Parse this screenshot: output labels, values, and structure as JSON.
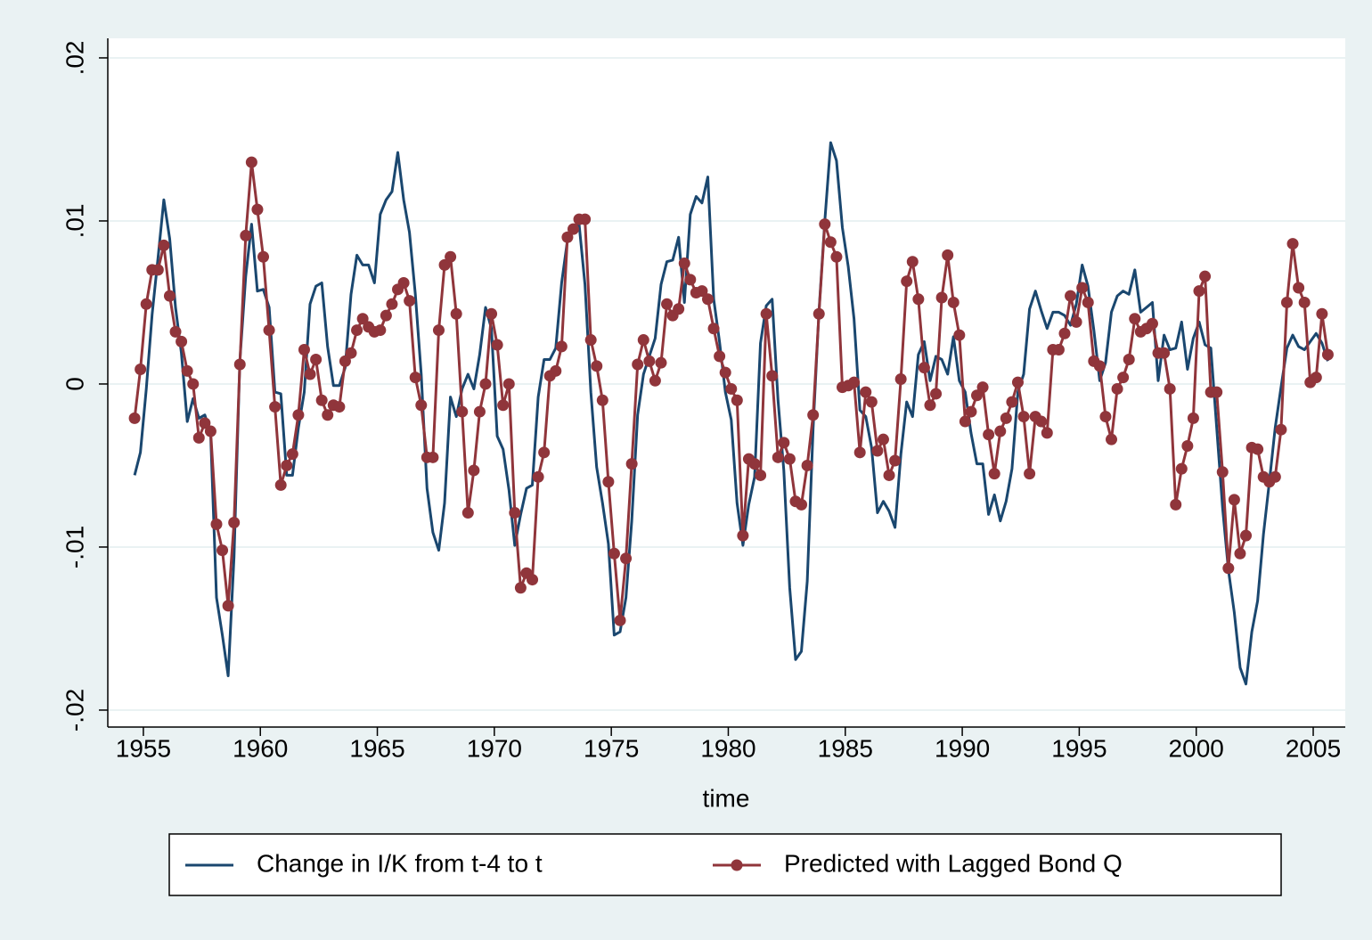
{
  "chart_data": {
    "type": "line",
    "x_label": "time",
    "x": [
      1954.625,
      1954.875,
      1955.125,
      1955.375,
      1955.625,
      1955.875,
      1956.125,
      1956.375,
      1956.625,
      1956.875,
      1957.125,
      1957.375,
      1957.625,
      1957.875,
      1958.125,
      1958.375,
      1958.625,
      1958.875,
      1959.125,
      1959.375,
      1959.625,
      1959.875,
      1960.125,
      1960.375,
      1960.625,
      1960.875,
      1961.125,
      1961.375,
      1961.625,
      1961.875,
      1962.125,
      1962.375,
      1962.625,
      1962.875,
      1963.125,
      1963.375,
      1963.625,
      1963.875,
      1964.125,
      1964.375,
      1964.625,
      1964.875,
      1965.125,
      1965.375,
      1965.625,
      1965.875,
      1966.125,
      1966.375,
      1966.625,
      1966.875,
      1967.125,
      1967.375,
      1967.625,
      1967.875,
      1968.125,
      1968.375,
      1968.625,
      1968.875,
      1969.125,
      1969.375,
      1969.625,
      1969.875,
      1970.125,
      1970.375,
      1970.625,
      1970.875,
      1971.125,
      1971.375,
      1971.625,
      1971.875,
      1972.125,
      1972.375,
      1972.625,
      1972.875,
      1973.125,
      1973.375,
      1973.625,
      1973.875,
      1974.125,
      1974.375,
      1974.625,
      1974.875,
      1975.125,
      1975.375,
      1975.625,
      1975.875,
      1976.125,
      1976.375,
      1976.625,
      1976.875,
      1977.125,
      1977.375,
      1977.625,
      1977.875,
      1978.125,
      1978.375,
      1978.625,
      1978.875,
      1979.125,
      1979.375,
      1979.625,
      1979.875,
      1980.125,
      1980.375,
      1980.625,
      1980.875,
      1981.125,
      1981.375,
      1981.625,
      1981.875,
      1982.125,
      1982.375,
      1982.625,
      1982.875,
      1983.125,
      1983.375,
      1983.625,
      1983.875,
      1984.125,
      1984.375,
      1984.625,
      1984.875,
      1985.125,
      1985.375,
      1985.625,
      1985.875,
      1986.125,
      1986.375,
      1986.625,
      1986.875,
      1987.125,
      1987.375,
      1987.625,
      1987.875,
      1988.125,
      1988.375,
      1988.625,
      1988.875,
      1989.125,
      1989.375,
      1989.625,
      1989.875,
      1990.125,
      1990.375,
      1990.625,
      1990.875,
      1991.125,
      1991.375,
      1991.625,
      1991.875,
      1992.125,
      1992.375,
      1992.625,
      1992.875,
      1993.125,
      1993.375,
      1993.625,
      1993.875,
      1994.125,
      1994.375,
      1994.625,
      1994.875,
      1995.125,
      1995.375,
      1995.625,
      1995.875,
      1996.125,
      1996.375,
      1996.625,
      1996.875,
      1997.125,
      1997.375,
      1997.625,
      1997.875,
      1998.125,
      1998.375,
      1998.625,
      1998.875,
      1999.125,
      1999.375,
      1999.625,
      1999.875,
      2000.125,
      2000.375,
      2000.625,
      2000.875,
      2001.125,
      2001.375,
      2001.625,
      2001.875,
      2002.125,
      2002.375,
      2002.625,
      2002.875,
      2003.125,
      2003.375,
      2003.625,
      2003.875,
      2004.125,
      2004.375,
      2004.625,
      2004.875,
      2005.125,
      2005.375,
      2005.625
    ],
    "series": [
      {
        "name": "Change in I/K from t-4 to t",
        "color": "#1a476f",
        "marker": false,
        "values": [
          -0.0056,
          -0.0042,
          -0.0003,
          0.0043,
          0.0077,
          0.0113,
          0.0089,
          0.0047,
          0.0019,
          -0.0023,
          -0.0009,
          -0.0021,
          -0.0019,
          -0.003,
          -0.0131,
          -0.0154,
          -0.0179,
          -0.0106,
          0.0014,
          0.0066,
          0.0098,
          0.0057,
          0.0058,
          0.0047,
          -0.0005,
          -0.0006,
          -0.0056,
          -0.0056,
          -0.0027,
          -0.0005,
          0.0049,
          0.006,
          0.0062,
          0.0023,
          -0.0001,
          -0.0001,
          0.001,
          0.0055,
          0.0079,
          0.0073,
          0.0073,
          0.0062,
          0.0104,
          0.0113,
          0.0118,
          0.0142,
          0.0113,
          0.0093,
          0.0055,
          0.0006,
          -0.0064,
          -0.0091,
          -0.0102,
          -0.0073,
          -0.0008,
          -0.002,
          -0.0003,
          0.0006,
          -0.0003,
          0.0018,
          0.0047,
          0.0034,
          -0.0032,
          -0.004,
          -0.0065,
          -0.0099,
          -0.008,
          -0.0064,
          -0.0062,
          -0.0008,
          0.0015,
          0.0015,
          0.0022,
          0.0062,
          0.0088,
          0.0096,
          0.0098,
          0.0061,
          -0.0005,
          -0.0051,
          -0.0073,
          -0.0098,
          -0.0154,
          -0.0152,
          -0.0131,
          -0.0084,
          -0.0019,
          0.0006,
          0.0017,
          0.0028,
          0.0061,
          0.0075,
          0.0076,
          0.009,
          0.005,
          0.0104,
          0.0115,
          0.0111,
          0.0127,
          0.0052,
          0.0026,
          -0.0005,
          -0.0022,
          -0.0073,
          -0.0099,
          -0.0074,
          -0.0057,
          0.0025,
          0.0048,
          0.0052,
          -0.001,
          -0.0053,
          -0.0125,
          -0.0169,
          -0.0164,
          -0.0121,
          -0.0027,
          0.0044,
          0.01,
          0.0148,
          0.0137,
          0.0096,
          0.0072,
          0.004,
          -0.0016,
          -0.002,
          -0.0039,
          -0.0079,
          -0.0072,
          -0.0078,
          -0.0088,
          -0.0043,
          -0.0011,
          -0.002,
          0.0018,
          0.0026,
          0.0002,
          0.0017,
          0.0015,
          0.0006,
          0.0029,
          0.0002,
          -0.0005,
          -0.003,
          -0.0049,
          -0.0049,
          -0.008,
          -0.0068,
          -0.0084,
          -0.0072,
          -0.0052,
          -0.0005,
          0.0006,
          0.0046,
          0.0057,
          0.0045,
          0.0034,
          0.0044,
          0.0044,
          0.0042,
          0.0036,
          0.0049,
          0.0073,
          0.006,
          0.0033,
          0.0002,
          0.0013,
          0.0044,
          0.0054,
          0.0057,
          0.0055,
          0.007,
          0.0044,
          0.0047,
          0.005,
          0.0002,
          0.003,
          0.0021,
          0.0022,
          0.0038,
          0.0009,
          0.0028,
          0.0038,
          0.0024,
          0.0022,
          -0.0027,
          -0.0076,
          -0.0114,
          -0.014,
          -0.0174,
          -0.0184,
          -0.0152,
          -0.0133,
          -0.0092,
          -0.006,
          -0.0027,
          -0.0002,
          0.0022,
          0.003,
          0.0023,
          0.0021,
          0.0026,
          0.0031,
          0.0025,
          0.0014
        ]
      },
      {
        "name": "Predicted with Lagged Bond Q",
        "color": "#90353b",
        "marker": true,
        "values": [
          -0.0021,
          0.0009,
          0.0049,
          0.007,
          0.007,
          0.0085,
          0.0054,
          0.0032,
          0.0026,
          0.0008,
          0.0,
          -0.0033,
          -0.0024,
          -0.0029,
          -0.0086,
          -0.0102,
          -0.0136,
          -0.0085,
          0.0012,
          0.0091,
          0.0136,
          0.0107,
          0.0078,
          0.0033,
          -0.0014,
          -0.0062,
          -0.005,
          -0.0043,
          -0.0019,
          0.0021,
          0.0006,
          0.0015,
          -0.001,
          -0.0019,
          -0.0013,
          -0.0014,
          0.0014,
          0.0019,
          0.0033,
          0.004,
          0.0035,
          0.0032,
          0.0033,
          0.0042,
          0.0049,
          0.0058,
          0.0062,
          0.0051,
          0.0004,
          -0.0013,
          -0.0045,
          -0.0045,
          0.0033,
          0.0073,
          0.0078,
          0.0043,
          -0.0017,
          -0.0079,
          -0.0053,
          -0.0017,
          0.0,
          0.0043,
          0.0024,
          -0.0013,
          0.0,
          -0.0079,
          -0.0125,
          -0.0116,
          -0.012,
          -0.0057,
          -0.0042,
          0.0005,
          0.0008,
          0.0023,
          0.009,
          0.0095,
          0.0101,
          0.0101,
          0.0027,
          0.0011,
          -0.001,
          -0.006,
          -0.0104,
          -0.0145,
          -0.0107,
          -0.0049,
          0.0012,
          0.0027,
          0.0014,
          0.0002,
          0.0013,
          0.0049,
          0.0042,
          0.0046,
          0.0074,
          0.0064,
          0.0056,
          0.0057,
          0.0052,
          0.0034,
          0.0017,
          0.0007,
          -0.0003,
          -0.001,
          -0.0093,
          -0.0046,
          -0.0049,
          -0.0056,
          0.0043,
          0.0005,
          -0.0045,
          -0.0036,
          -0.0046,
          -0.0072,
          -0.0074,
          -0.005,
          -0.0019,
          0.0043,
          0.0098,
          0.0087,
          0.0078,
          -0.0002,
          -0.0001,
          0.0001,
          -0.0042,
          -0.0005,
          -0.0011,
          -0.0041,
          -0.0034,
          -0.0056,
          -0.0047,
          0.0003,
          0.0063,
          0.0075,
          0.0052,
          0.001,
          -0.0013,
          -0.0006,
          0.0053,
          0.0079,
          0.005,
          0.003,
          -0.0023,
          -0.0017,
          -0.0007,
          -0.0002,
          -0.0031,
          -0.0055,
          -0.0029,
          -0.0021,
          -0.0011,
          0.0001,
          -0.002,
          -0.0055,
          -0.002,
          -0.0023,
          -0.003,
          0.0021,
          0.0021,
          0.0031,
          0.0054,
          0.0038,
          0.0059,
          0.005,
          0.0014,
          0.0011,
          -0.002,
          -0.0034,
          -0.0003,
          0.0004,
          0.0015,
          0.004,
          0.0032,
          0.0034,
          0.0037,
          0.0019,
          0.0019,
          -0.0003,
          -0.0074,
          -0.0052,
          -0.0038,
          -0.0021,
          0.0057,
          0.0066,
          -0.0005,
          -0.0005,
          -0.0054,
          -0.0113,
          -0.0071,
          -0.0104,
          -0.0093,
          -0.0039,
          -0.004,
          -0.0057,
          -0.006,
          -0.0057,
          -0.0028,
          0.005,
          0.0086,
          0.0059,
          0.005,
          0.0001,
          0.0004,
          0.0043,
          0.0018
        ]
      }
    ],
    "xlim": [
      1953.48,
      2006.37
    ],
    "xticks": [
      1955,
      1960,
      1965,
      1970,
      1975,
      1980,
      1985,
      1990,
      1995,
      2000,
      2005
    ],
    "ylim": [
      -0.02104,
      0.0212
    ],
    "yticks": [
      {
        "value": -0.02,
        "label": "-.02"
      },
      {
        "value": -0.01,
        "label": "-.01"
      },
      0,
      {
        "value": 0.01,
        "label": ".01"
      },
      {
        "value": 0.02,
        "label": ".02"
      }
    ],
    "grid": true,
    "legend": "bottom"
  }
}
